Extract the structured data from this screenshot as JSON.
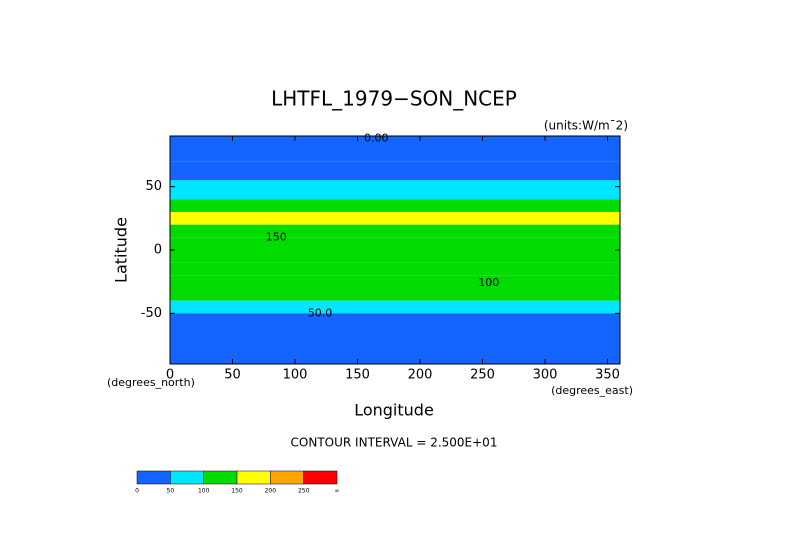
{
  "chart_data": {
    "type": "contour",
    "title": "LHTFL_1979−SON_NCEP",
    "units": "(units:W/m¯2)",
    "x_label": "Longitude",
    "y_label": "Latitude",
    "x_unit": "(degrees_east)",
    "y_unit": "(degrees_north)",
    "xlim": [
      0,
      360
    ],
    "ylim": [
      -90,
      90
    ],
    "xticks": [
      0,
      50,
      100,
      150,
      200,
      250,
      300,
      350
    ],
    "yticks": [
      -50,
      0,
      50
    ],
    "contour_interval": "CONTOUR INTERVAL = 2.500E+01",
    "field": {
      "lat_edges": [
        90,
        70,
        55,
        40,
        30,
        20,
        10,
        0,
        -10,
        -20,
        -30,
        -40,
        -50,
        -60,
        -90
      ],
      "values": [
        10,
        40,
        60,
        110,
        150,
        120,
        110,
        120,
        140,
        130,
        110,
        75,
        40,
        10
      ]
    },
    "contour_labels": [
      {
        "value": 0,
        "label": "0.00",
        "x": 165,
        "y": 88
      },
      {
        "value": 50,
        "label": "50.0",
        "x": 120,
        "y": -50
      },
      {
        "value": 150,
        "label": "150",
        "x": 85,
        "y": 10
      },
      {
        "value": 100,
        "label": "100",
        "x": 255,
        "y": -26
      }
    ],
    "colorbar": {
      "levels": [
        0,
        50,
        100,
        150,
        200,
        250,
        {
          "value": 300,
          "label": "∞"
        }
      ],
      "colors": [
        "#1464ff",
        "#00e6ff",
        "#00dc00",
        "#ffff00",
        "#ffa500",
        "#ff0000"
      ]
    }
  }
}
